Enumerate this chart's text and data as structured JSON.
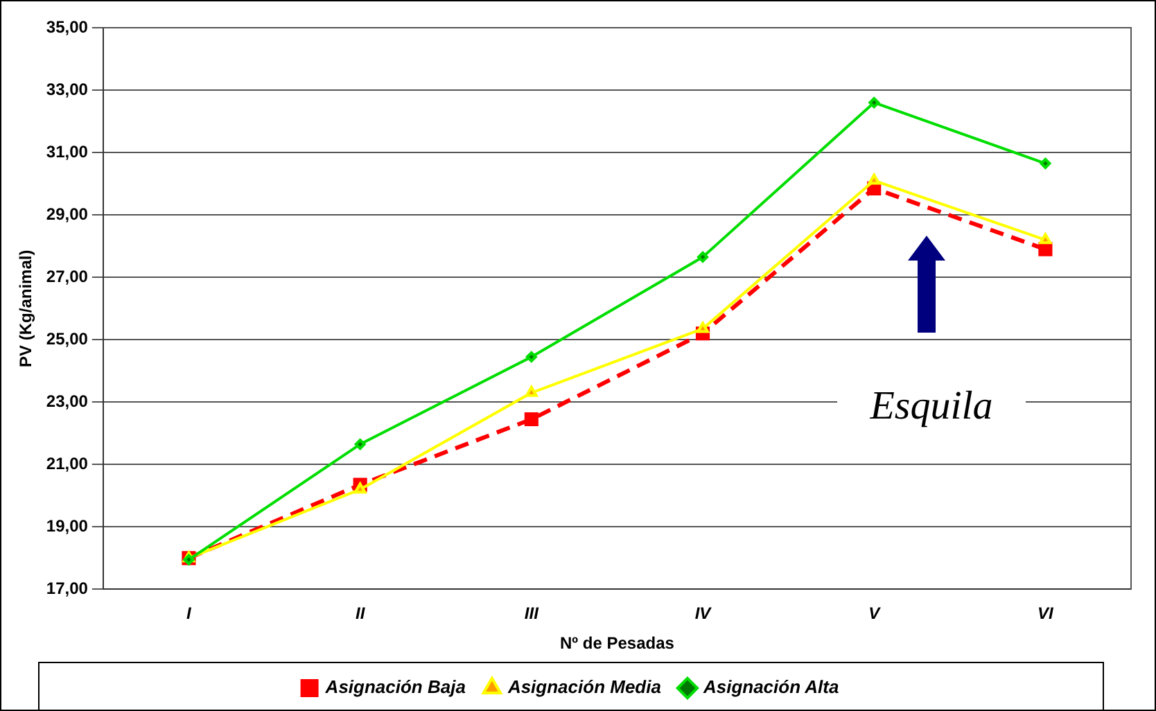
{
  "chart_data": {
    "type": "line",
    "xlabel": "Nº de Pesadas",
    "ylabel": "PV (Kg/animal)",
    "categories": [
      "I",
      "II",
      "III",
      "IV",
      "V",
      "VI"
    ],
    "series": [
      {
        "name": "Asignación Baja",
        "color": "#ff0000",
        "marker": "square",
        "line_style": "dashed",
        "values": [
          18.0,
          20.35,
          22.45,
          25.2,
          29.85,
          27.9
        ]
      },
      {
        "name": "Asignación Media",
        "color": "#ffff00",
        "marker": "triangle",
        "line_style": "solid",
        "values": [
          18.0,
          20.2,
          23.3,
          25.35,
          30.1,
          28.2
        ]
      },
      {
        "name": "Asignación Alta",
        "color": "#00dd00",
        "marker": "diamond",
        "line_style": "solid",
        "values": [
          17.95,
          21.65,
          24.45,
          27.65,
          32.6,
          30.65
        ]
      }
    ],
    "ylim": [
      17,
      35
    ],
    "yticks": [
      {
        "value": 17,
        "label": "17,00"
      },
      {
        "value": 19,
        "label": "19,00"
      },
      {
        "value": 21,
        "label": "21,00"
      },
      {
        "value": 23,
        "label": "23,00"
      },
      {
        "value": 25,
        "label": "25,00"
      },
      {
        "value": 27,
        "label": "27,00"
      },
      {
        "value": 29,
        "label": "29,00"
      },
      {
        "value": 31,
        "label": "31,00"
      },
      {
        "value": 33,
        "label": "33,00"
      },
      {
        "value": 35,
        "label": "35,00"
      }
    ],
    "grid": "y",
    "legend": "bottom",
    "annotations": [
      "Esquila"
    ]
  }
}
